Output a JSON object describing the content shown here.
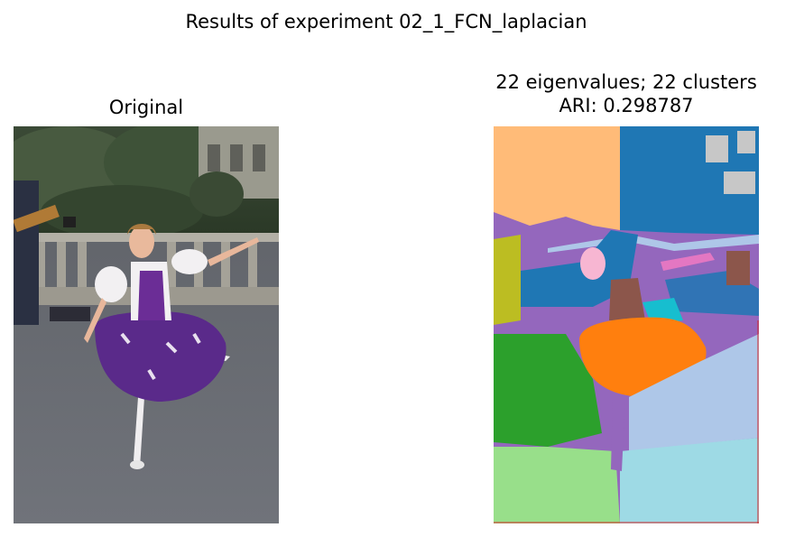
{
  "figure": {
    "suptitle": "Results of experiment 02_1_FCN_laplacian"
  },
  "left_panel": {
    "title": "Original"
  },
  "right_panel": {
    "title_line1": "22 eigenvalues; 22 clusters",
    "title_line2": "ARI: 0.298787"
  },
  "colors": {
    "cluster_blue": "#1f77b4",
    "cluster_orange": "#ff7f0e",
    "cluster_green": "#2ca02c",
    "cluster_purple": "#9467bd",
    "cluster_light_orange": "#ffbb78",
    "cluster_light_green": "#98df8a",
    "cluster_light_blue": "#aec7e8",
    "cluster_cyan_light": "#9edae5",
    "cluster_olive": "#bcbd22",
    "cluster_brown": "#8c564b",
    "cluster_pink": "#e377c2",
    "cluster_gray": "#c7c7c7",
    "cluster_teal": "#17becf",
    "cluster_light_pink": "#f7b6d2"
  }
}
